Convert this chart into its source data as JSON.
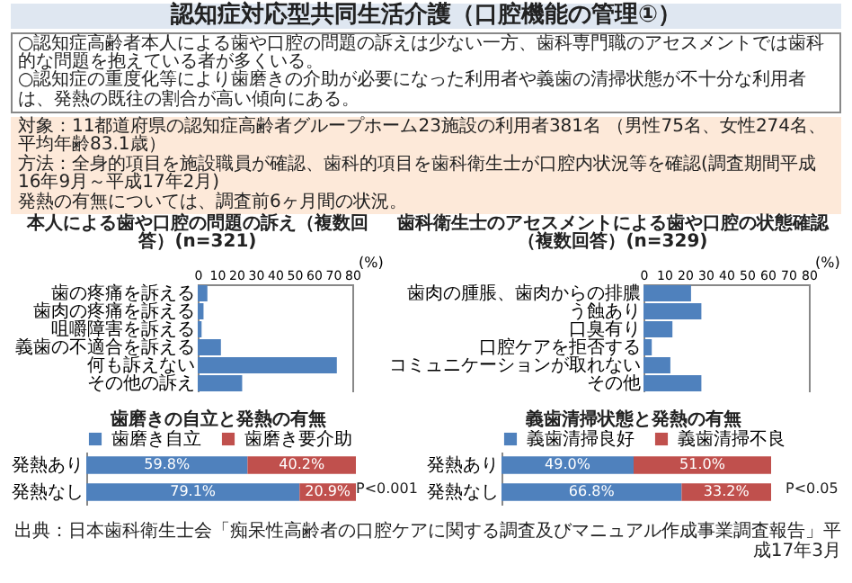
{
  "chart_data": [
    {
      "type": "other",
      "title": "認知症対応型共同生活介護（口腔機能の管理①）",
      "annotations": [
        "○認知症高齢者本人による歯や口腔の問題の訴えは少ない一方、歯科専門職のアセスメントでは歯科的な問題を抱えている者が多くいる。",
        "○認知症の重度化等により歯磨きの介助が必要になった利用者や義歯の清掃状態が不十分な利用者は、発熱の既往の割合が高い傾向にある。",
        "対象：11都道府県の認知症高齢者グループホーム23施設の利用者381名 （男性75名、女性274名、平均年齢83.1歳）",
        "方法：全身的項目を施設職員が確認、歯科的項目を歯科衛生士が口腔内状況等を確認(調査期間平成16年9月～平成17年2月)",
        "発熱の有無については、調査前6ヶ月間の状況。",
        "出典：日本歯科衛生士会「痴呆性高齢者の口腔ケアに関する調査及びマニュアル作成事業調査報告」平成17年3月"
      ]
    },
    {
      "type": "bar",
      "orientation": "horizontal",
      "title": "本人による歯や口腔の問題の訴え（複数回答）(n=321)",
      "xlabel": "(%)",
      "categories": [
        "歯の疼痛を訴える",
        "歯肉の疼痛を訴える",
        "咀嚼障害を訴える",
        "義歯の不適合を訴える",
        "何も訴えない",
        "その他の訴え"
      ],
      "values": [
        5,
        3,
        2,
        12,
        72,
        23
      ],
      "color": "#4f81bd",
      "xlim": [
        0,
        80
      ],
      "xticks": [
        0,
        10,
        20,
        30,
        40,
        50,
        60,
        70,
        80
      ]
    },
    {
      "type": "bar",
      "orientation": "horizontal",
      "title": "歯科衛生士のアセスメントによる歯や口腔の状態確認（複数回答）(n=329)",
      "xlabel": "(%)",
      "categories": [
        "歯肉の腫脹、歯肉からの排膿",
        "う蝕あり",
        "口臭有り",
        "口腔ケアを拒否する",
        "コミュニケーションが取れない",
        "その他"
      ],
      "values": [
        23,
        28,
        14,
        4,
        13,
        28
      ],
      "color": "#4f81bd",
      "xlim": [
        0,
        80
      ],
      "xticks": [
        0,
        10,
        20,
        30,
        40,
        50,
        60,
        70,
        80
      ]
    },
    {
      "type": "bar",
      "orientation": "horizontal",
      "stacked": true,
      "title": "歯磨きの自立と発熱の有無",
      "legend": "top",
      "tick_labels": "y",
      "categories": [
        "発熱あり",
        "発熱なし"
      ],
      "annotations": [
        "P<0.001"
      ],
      "series": [
        {
          "name": "歯磨き自立",
          "color": "#4f81bd",
          "values": [
            59.8,
            79.1
          ],
          "value_labels": [
            "59.8%",
            "79.1%"
          ]
        },
        {
          "name": "歯磨き要介助",
          "color": "#c0504d",
          "values": [
            40.2,
            20.9
          ],
          "value_labels": [
            "40.2%",
            "20.9%"
          ]
        }
      ]
    },
    {
      "type": "bar",
      "orientation": "horizontal",
      "stacked": true,
      "title": "義歯清掃状態と発熱の有無",
      "legend": "top",
      "tick_labels": "y",
      "categories": [
        "発熱あり",
        "発熱なし"
      ],
      "annotations": [
        "P<0.05"
      ],
      "series": [
        {
          "name": "義歯清掃良好",
          "color": "#4f81bd",
          "values": [
            49.0,
            66.8
          ],
          "value_labels": [
            "49.0%",
            "66.8%"
          ]
        },
        {
          "name": "義歯清掃不良",
          "color": "#c0504d",
          "values": [
            51.0,
            33.2
          ],
          "value_labels": [
            "51.0%",
            "33.2%"
          ]
        }
      ]
    }
  ]
}
